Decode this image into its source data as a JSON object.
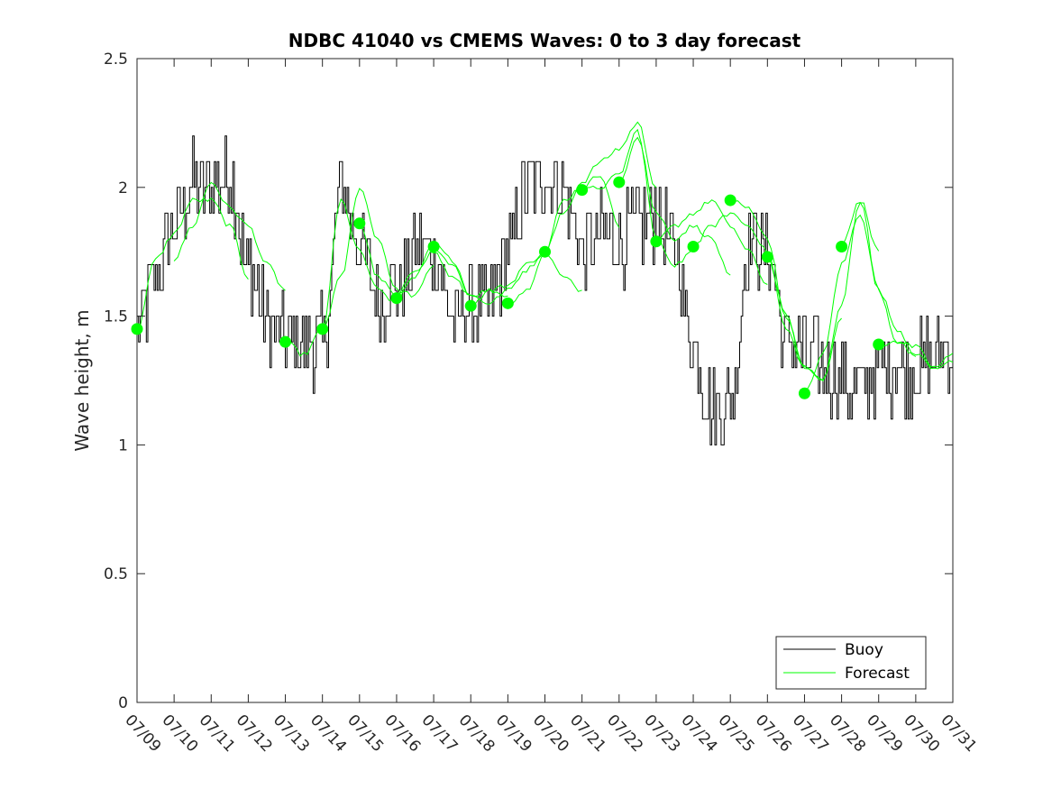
{
  "chart_data": {
    "type": "line",
    "title": "NDBC 41040 vs CMEMS Waves: 0 to 3 day forecast",
    "xlabel": "",
    "ylabel": "Wave height, m",
    "ylim": [
      0,
      2.5
    ],
    "yticks": [
      "0",
      "0.5",
      "1",
      "1.5",
      "2",
      "2.5"
    ],
    "xlim": [
      "07/09",
      "07/31"
    ],
    "xticks": [
      "07/09",
      "07/10",
      "07/11",
      "07/12",
      "07/13",
      "07/14",
      "07/15",
      "07/16",
      "07/17",
      "07/18",
      "07/19",
      "07/20",
      "07/21",
      "07/22",
      "07/23",
      "07/24",
      "07/25",
      "07/26",
      "07/27",
      "07/28",
      "07/29",
      "07/30",
      "07/31"
    ],
    "grid": false,
    "legend": {
      "placement": "bottom-right",
      "entries": [
        "Buoy",
        "Forecast"
      ]
    },
    "colors": {
      "buoy": "#000000",
      "forecast": "#00ff00"
    },
    "buoy": {
      "name": "Buoy",
      "days": [
        0,
        0.5,
        1,
        1.5,
        2,
        2.5,
        3,
        3.5,
        4,
        4.5,
        5,
        5.5,
        6,
        6.5,
        7,
        7.5,
        8,
        8.5,
        9,
        9.5,
        10,
        10.5,
        11,
        11.5,
        12,
        12.5,
        13,
        13.5,
        14,
        14.5,
        15,
        15.5,
        16,
        16.5,
        17,
        17.5,
        18,
        18.5,
        19,
        19.5,
        20,
        20.5,
        21,
        21.5,
        22
      ],
      "values": [
        1.45,
        1.65,
        1.85,
        2.0,
        2.0,
        2.05,
        1.7,
        1.5,
        1.4,
        1.4,
        1.4,
        2.0,
        1.8,
        1.55,
        1.6,
        1.75,
        1.75,
        1.5,
        1.55,
        1.55,
        1.75,
        2.0,
        2.05,
        2.0,
        1.75,
        1.8,
        1.8,
        1.85,
        1.9,
        1.75,
        1.4,
        1.15,
        1.15,
        1.8,
        1.75,
        1.4,
        1.35,
        1.3,
        1.25,
        1.2,
        1.3,
        1.3,
        1.3,
        1.35,
        1.4
      ]
    },
    "forecast_days": [
      0,
      0.5,
      1,
      1.5,
      2,
      2.5,
      3,
      3.5,
      4,
      4.5,
      5,
      5.5,
      6,
      6.5,
      7,
      7.5,
      8,
      8.5,
      9,
      9.5,
      10,
      10.5,
      11,
      11.5,
      12,
      12.5,
      13,
      13.5,
      14,
      14.5,
      15,
      15.5,
      16,
      16.5,
      17,
      17.5,
      18,
      18.5,
      19,
      19.5,
      20,
      20.5,
      21,
      21.5,
      22
    ],
    "series": [
      {
        "name": "Forecast",
        "start_day": 0,
        "values": [
          1.45,
          1.72,
          1.82,
          1.95,
          1.95,
          1.85,
          1.65
        ]
      },
      {
        "name": "Forecast",
        "start_day": 1,
        "values": [
          1.72,
          1.85,
          2.02,
          1.92,
          1.85,
          1.7,
          1.6
        ]
      },
      {
        "name": "Forecast",
        "start_day": 4,
        "values": [
          1.4,
          1.35,
          1.45,
          1.95,
          1.75,
          1.6,
          1.55
        ]
      },
      {
        "name": "Forecast",
        "start_day": 5,
        "values": [
          1.45,
          1.65,
          2.0,
          1.8,
          1.6,
          1.58,
          1.7
        ]
      },
      {
        "name": "Forecast",
        "start_day": 6,
        "values": [
          1.86,
          1.65,
          1.58,
          1.68,
          1.75,
          1.65,
          1.58
        ]
      },
      {
        "name": "Forecast",
        "start_day": 7,
        "values": [
          1.57,
          1.65,
          1.78,
          1.72,
          1.58,
          1.6,
          1.58
        ]
      },
      {
        "name": "Forecast",
        "start_day": 8,
        "values": [
          1.77,
          1.7,
          1.58,
          1.55,
          1.6,
          1.68,
          1.75
        ]
      },
      {
        "name": "Forecast",
        "start_day": 9,
        "values": [
          1.54,
          1.6,
          1.62,
          1.7,
          1.75,
          1.65,
          1.6
        ]
      },
      {
        "name": "Forecast",
        "start_day": 10,
        "values": [
          1.55,
          1.6,
          1.75,
          1.95,
          2.0,
          2.05,
          1.85
        ]
      },
      {
        "name": "Forecast",
        "start_day": 11,
        "values": [
          1.75,
          1.9,
          2.02,
          2.1,
          2.15,
          2.25,
          2.0
        ]
      },
      {
        "name": "Forecast",
        "start_day": 12,
        "values": [
          1.99,
          2.0,
          2.05,
          2.22,
          1.8,
          1.7,
          1.75
        ]
      },
      {
        "name": "Forecast",
        "start_day": 13,
        "values": [
          2.02,
          2.2,
          1.9,
          1.8,
          1.85,
          1.8,
          1.65
        ]
      },
      {
        "name": "Forecast",
        "start_day": 14,
        "values": [
          1.79,
          1.85,
          1.9,
          1.95,
          1.85,
          1.75,
          1.62
        ]
      },
      {
        "name": "Forecast",
        "start_day": 15,
        "values": [
          1.77,
          1.85,
          1.9,
          1.85,
          1.75,
          1.45,
          1.3
        ]
      },
      {
        "name": "Forecast",
        "start_day": 16,
        "values": [
          1.95,
          1.92,
          1.8,
          1.5,
          1.3,
          1.25,
          1.5
        ]
      },
      {
        "name": "Forecast",
        "start_day": 17,
        "values": [
          1.73,
          1.5,
          1.3,
          1.25,
          1.55,
          1.95,
          1.75
        ]
      },
      {
        "name": "Forecast",
        "start_day": 18,
        "values": [
          1.2,
          1.35,
          1.7,
          1.9,
          1.6,
          1.45,
          1.35
        ]
      },
      {
        "name": "Forecast",
        "start_day": 19,
        "values": [
          1.77,
          1.95,
          1.6,
          1.4,
          1.38,
          1.3,
          1.35
        ]
      },
      {
        "name": "Forecast",
        "start_day": 20,
        "values": [
          1.39,
          1.4,
          1.35,
          1.3,
          1.32,
          1.4,
          1.45
        ]
      }
    ],
    "analysis_points": {
      "name": "Forecast",
      "days": [
        0,
        4,
        5,
        6,
        7,
        8,
        9,
        10,
        11,
        12,
        13,
        14,
        15,
        16,
        17,
        18,
        19,
        20
      ],
      "values": [
        1.45,
        1.4,
        1.45,
        1.86,
        1.57,
        1.77,
        1.54,
        1.55,
        1.75,
        1.99,
        2.02,
        1.79,
        1.77,
        1.95,
        1.73,
        1.2,
        1.77,
        1.39
      ]
    }
  }
}
